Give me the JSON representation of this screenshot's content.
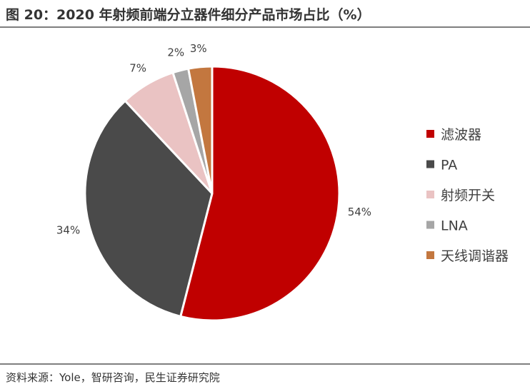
{
  "header": {
    "title": "图 20：2020 年射频前端分立器件细分产品市场占比（%）"
  },
  "footer": {
    "source": "资料来源：Yole，智研咨询，民生证券研究院"
  },
  "chart_data": {
    "type": "pie",
    "title": "图 20：2020 年射频前端分立器件细分产品市场占比（%）",
    "slices": [
      {
        "name": "滤波器",
        "value": 54,
        "label": "54%",
        "color": "#c00000"
      },
      {
        "name": "PA",
        "value": 34,
        "label": "34%",
        "color": "#4a4a4a"
      },
      {
        "name": "射频开关",
        "value": 7,
        "label": "7%",
        "color": "#eac3c3"
      },
      {
        "name": "LNA",
        "value": 2,
        "label": "2%",
        "color": "#a6a6a6"
      },
      {
        "name": "天线调谐器",
        "value": 3,
        "label": "3%",
        "color": "#c3773f"
      }
    ],
    "legend_position": "right"
  }
}
